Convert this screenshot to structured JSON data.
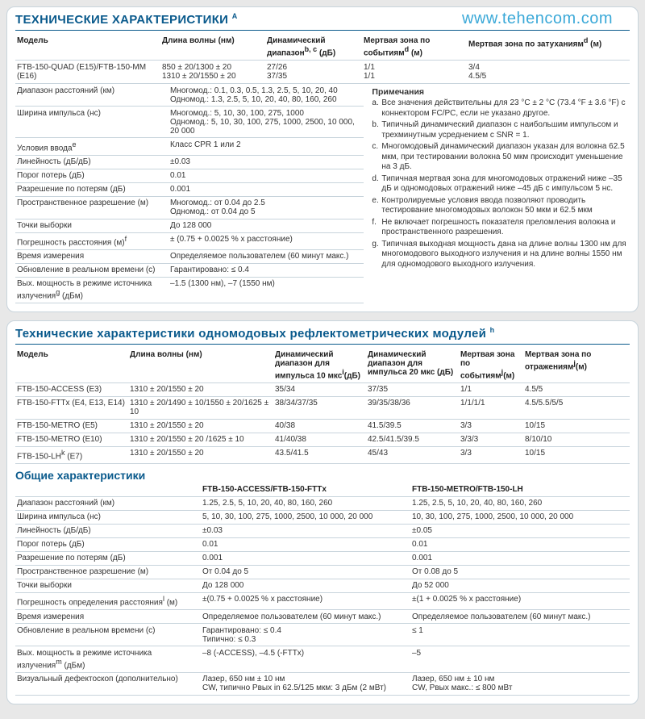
{
  "watermark": "www.tehencom.com",
  "panel1": {
    "title": "ТЕХНИЧЕСКИЕ ХАРАКТЕРИСТИКИ",
    "title_sup": "a",
    "headers": {
      "model": "Модель",
      "wavelength": "Длина волны (нм)",
      "dynrange": "Динамический диапазон",
      "dynrange_sup": "b, c",
      "dynrange_unit": " (дБ)",
      "deadevent": "Мертвая зона по событиям",
      "deadevent_sup": "d",
      "deadevent_unit": " (м)",
      "deadatt": "Мертвая зона по затуханиям",
      "deadatt_sup": "d",
      "deadatt_unit": " (м)"
    },
    "row1": {
      "model": "FTB-150-QUAD (E15)/FTB-150-MM (E16)",
      "wl_a": "850 ± 20/1300 ± 20",
      "wl_b": "1310 ± 20/1550 ± 20",
      "dr_a": "27/26",
      "dr_b": "37/35",
      "de_a": "1/1",
      "de_b": "1/1",
      "da_a": "3/4",
      "da_b": "4.5/5"
    },
    "specs": [
      {
        "k": "Диапазон расстояний (км)",
        "v1": "Многомод.: 0.1, 0.3, 0.5, 1.3, 2.5, 5, 10, 20, 40",
        "v2": "Одномод.: 1.3, 2.5, 5, 10, 20, 40, 80, 160, 260"
      },
      {
        "k": "Ширина импульса (нс)",
        "v1": "Многомод.: 5, 10, 30, 100, 275, 1000",
        "v2": "Одномод.: 5, 10, 30, 100, 275, 1000, 2500, 10 000, 20 000"
      },
      {
        "k": "Условия ввода",
        "sup": "e",
        "v1": "Класс CPR 1 или 2"
      },
      {
        "k": "Линейность (дБ/дБ)",
        "v1": "±0.03"
      },
      {
        "k": "Порог потерь (дБ)",
        "v1": "0.01"
      },
      {
        "k": "Разрешение по потерям (дБ)",
        "v1": "0.001"
      },
      {
        "k": "Пространственное разрешение (м)",
        "v1": "Многомод.: от 0.04 до 2.5",
        "v2": "Одномод.: от 0.04 до 5"
      },
      {
        "k": "Точки выборки",
        "v1": "До 128 000"
      },
      {
        "k": "Погрешность расстояния (м)",
        "sup": "f",
        "v1": "± (0.75 + 0.0025 % x расстояние)"
      },
      {
        "k": "Время измерения",
        "v1": "Определяемое пользователем (60 минут макс.)"
      },
      {
        "k": "Обновление в реальном времени (с)",
        "v1": "Гарантировано: ≤ 0.4"
      },
      {
        "k": "Вых. мощность в режиме источника излучения",
        "sup": "g",
        "k2": " (дБм)",
        "v1": "–1.5 (1300 нм), –7 (1550 нм)"
      }
    ],
    "notes_title": "Примечания",
    "notes": [
      {
        "k": "a.",
        "t": "Все значения действительны для 23 °C ± 2 °C (73.4 °F ± 3.6 °F) с коннектором FC/PC, если не указано другое."
      },
      {
        "k": "b.",
        "t": "Типичный динамический диапазон с наибольшим импульсом и трехминутным усреднением с SNR = 1."
      },
      {
        "k": "c.",
        "t": "Многомодовый динамический диапазон указан для волокна 62.5 мкм, при тестировании волокна 50 мкм происходит уменьшение на 3 дБ."
      },
      {
        "k": "d.",
        "t": "Типичная мертвая зона для многомодовых отражений ниже –35 дБ и одномодовых отражений ниже –45 дБ с импульсом 5 нс."
      },
      {
        "k": "e.",
        "t": "Контролируемые условия ввода позволяют проводить тестирование многомодовых волокон 50 мкм и 62.5 мкм"
      },
      {
        "k": "f.",
        "t": "Не включает погрешность показателя преломления волокна и пространственного разрешения."
      },
      {
        "k": "g.",
        "t": "Типичная выходная мощность дана на длине волны 1300 нм для многомодового выходного излучения и на длине волны 1550 нм для одномодового выходного излучения."
      }
    ]
  },
  "panel2": {
    "title": "Технические характеристики одномодовых рефлектометрических модулей",
    "title_sup": "h",
    "headers": {
      "model": "Модель",
      "wl": "Длина волны (нм)",
      "dr10": "Динамический диапазон для импульса 10 мкс",
      "dr10_sup": "i",
      "dr10_unit": "(дБ)",
      "dr20": "Динамический диапазон для импульса 20 мкс (дБ)",
      "dead_ev": "Мертвая зона по событиям",
      "dead_ev_sup": "j",
      "dead_ev_unit": "(м)",
      "dead_rf": "Мертвая зона по отражениям",
      "dead_rf_sup": "j",
      "dead_rf_unit": "(м)"
    },
    "rows": [
      {
        "m": "FTB-150-ACCESS (E3)",
        "wl": "1310 ± 20/1550 ± 20",
        "d10": "35/34",
        "d20": "37/35",
        "de": "1/1",
        "dr": "4.5/5"
      },
      {
        "m": "FTB-150-FTTx (E4, E13, E14)",
        "wl": "1310 ± 20/1490 ± 10/1550 ± 20/1625 ± 10",
        "d10": "38/34/37/35",
        "d20": "39/35/38/36",
        "de": "1/1/1/1",
        "dr": "4.5/5.5/5/5"
      },
      {
        "m": "FTB-150-METRO (E5)",
        "wl": "1310 ± 20/1550 ± 20",
        "d10": "40/38",
        "d20": "41.5/39.5",
        "de": "3/3",
        "dr": "10/15"
      },
      {
        "m": "FTB-150-METRO (E10)",
        "wl": "1310 ± 20/1550 ± 20 /1625 ± 10",
        "d10": "41/40/38",
        "d20": "42.5/41.5/39.5",
        "de": "3/3/3",
        "dr": "8/10/10"
      },
      {
        "m": "FTB-150-LH",
        "m_sup": "k",
        "m2": " (E7)",
        "wl": "1310 ± 20/1550 ± 20",
        "d10": "43.5/41.5",
        "d20": "45/43",
        "de": "3/3",
        "dr": "10/15"
      }
    ],
    "subtitle": "Общие характеристики",
    "gen_headers": {
      "a": "FTB-150-ACCESS/FTB-150-FTTx",
      "b": "FTB-150-METRO/FTB-150-LH"
    },
    "gen": [
      {
        "k": "Диапазон расстояний (км)",
        "a": "1.25, 2.5, 5, 10, 20, 40, 80, 160, 260",
        "b": "1.25, 2.5, 5, 10, 20, 40, 80, 160, 260"
      },
      {
        "k": "Ширина импульса (нс)",
        "a": "5, 10, 30, 100, 275, 1000, 2500, 10 000, 20 000",
        "b": "10, 30, 100, 275, 1000, 2500, 10 000, 20 000"
      },
      {
        "k": "Линейность (дБ/дБ)",
        "a": "±0.03",
        "b": "±0.05"
      },
      {
        "k": "Порог потерь (дБ)",
        "a": "0.01",
        "b": "0.01"
      },
      {
        "k": "Разрешение по потерям (дБ)",
        "a": "0.001",
        "b": "0.001"
      },
      {
        "k": "Пространственное разрешение (м)",
        "a": "От 0.04 до 5",
        "b": "От 0.08 до 5"
      },
      {
        "k": "Точки выборки",
        "a": "До 128 000",
        "b": "До 52 000"
      },
      {
        "k": "Погрешность определения расстояния",
        "sup": "l",
        "k2": " (м)",
        "a": "±(0.75 + 0.0025 % x расстояние)",
        "b": "±(1 + 0.0025 % x расстояние)"
      },
      {
        "k": "Время измерения",
        "a": "Определяемое пользователем (60 минут макс.)",
        "b": "Определяемое пользователем (60 минут макс.)"
      },
      {
        "k": "Обновление в реальном времени (с)",
        "a": "Гарантировано: ≤ 0.4",
        "a2": "Типично: ≤ 0.3",
        "b": "≤ 1"
      },
      {
        "k": "Вых. мощность в режиме источника излучения",
        "sup": "m",
        "k2": " (дБм)",
        "a": "–8 (-ACCESS), –4.5 (-FTTx)",
        "b": "–5"
      },
      {
        "k": "Визуальный дефектоскоп (дополнительно)",
        "a": "Лазер, 650 нм ± 10 нм",
        "a2": "CW, типично Рвых in 62.5/125 мкм: 3 дБм (2 мВт)",
        "b": "Лазер, 650 нм ± 10 нм",
        "b2": "CW, Рвых макс.: ≤ 800 мВт"
      }
    ]
  }
}
